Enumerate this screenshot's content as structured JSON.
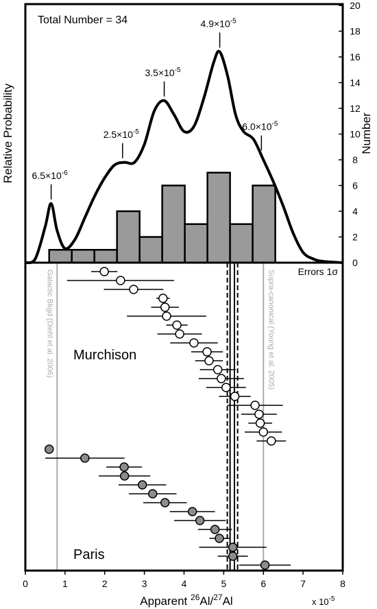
{
  "chart_data": [
    {
      "type": "histogram",
      "title": "Total Number = 34",
      "ylabel_left": "Relative Probability",
      "ylabel_right": "Number",
      "xlim": [
        0,
        8
      ],
      "ylim": [
        0,
        20
      ],
      "yticks": [
        0,
        2,
        4,
        6,
        8,
        10,
        12,
        14,
        16,
        18,
        20
      ],
      "bins": [
        0.6,
        1.17,
        1.74,
        2.31,
        2.88,
        3.45,
        4.02,
        4.59,
        5.16,
        5.73,
        6.3
      ],
      "counts": [
        1,
        1,
        1,
        4,
        2,
        6,
        3,
        7,
        3,
        6
      ],
      "bar_color": "#9a9a9a",
      "curve": {
        "x": [
          0,
          0.25,
          0.5,
          0.65,
          0.8,
          1.0,
          1.25,
          1.5,
          1.75,
          2.0,
          2.25,
          2.5,
          2.75,
          3.0,
          3.25,
          3.5,
          3.75,
          4.0,
          4.25,
          4.5,
          4.75,
          4.9,
          5.1,
          5.3,
          5.5,
          5.75,
          6.0,
          6.25,
          6.5,
          6.75,
          7.0,
          7.25,
          7.5,
          8
        ],
        "y": [
          0,
          0.3,
          2.8,
          4.6,
          2.5,
          1.1,
          1.8,
          3.5,
          5.2,
          6.6,
          7.6,
          7.8,
          7.8,
          9.2,
          11.8,
          12.6,
          11.5,
          10.2,
          10.6,
          12.8,
          15.6,
          16.4,
          14.5,
          11.5,
          10.2,
          9.6,
          8.0,
          6.3,
          4.4,
          2.3,
          0.8,
          0.3,
          0.1,
          0
        ]
      },
      "annotations": [
        {
          "x": 0.65,
          "y": 4.6,
          "base": "6.5×10",
          "exp": "-6"
        },
        {
          "x": 2.45,
          "y": 7.8,
          "base": "2.5×10",
          "exp": "-5"
        },
        {
          "x": 3.5,
          "y": 12.6,
          "base": "3.5×10",
          "exp": "-5"
        },
        {
          "x": 4.9,
          "y": 16.4,
          "base": "4.9×10",
          "exp": "-5"
        },
        {
          "x": 5.95,
          "y": 8.4,
          "base": "6.0×10",
          "exp": "-5"
        }
      ]
    },
    {
      "type": "errorbar",
      "error_note": "Errors 1σ",
      "xlim": [
        0,
        8
      ],
      "xticks": [
        0,
        1,
        2,
        3,
        4,
        5,
        6,
        7,
        8
      ],
      "xlabel": [
        {
          "text": "Apparent "
        },
        {
          "text": "26",
          "sup": true
        },
        {
          "text": "Al/"
        },
        {
          "text": "27",
          "sup": true
        },
        {
          "text": "Al"
        }
      ],
      "x_multiplier": {
        "base": "x 10",
        "exp": "-5"
      },
      "series": [
        {
          "name": "Murchison",
          "color": "#ffffff",
          "values": [
            1.99,
            2.4,
            2.73,
            3.47,
            3.52,
            3.56,
            3.82,
            3.89,
            4.25,
            4.58,
            4.63,
            4.85,
            4.94,
            5.06,
            5.28,
            5.79,
            5.89,
            5.92,
            6.0,
            6.2
          ],
          "errors": [
            0.33,
            1.35,
            0.75,
            0.17,
            0.35,
            1.0,
            0.27,
            0.56,
            0.6,
            0.4,
            0.35,
            0.45,
            0.57,
            0.5,
            0.4,
            0.7,
            0.45,
            0.3,
            0.47,
            0.37
          ]
        },
        {
          "name": "Paris",
          "color": "#8c8c8c",
          "values": [
            0.6,
            1.5,
            2.49,
            2.5,
            2.95,
            3.21,
            3.52,
            4.21,
            4.4,
            4.78,
            4.89,
            5.23,
            5.23,
            6.04
          ],
          "errors": [
            0.07,
            1.0,
            0.45,
            0.65,
            0.6,
            0.6,
            0.55,
            0.57,
            0.65,
            0.43,
            0.25,
            0.85,
            0.38,
            0.65
          ]
        }
      ],
      "ref_lines": [
        {
          "value": 0.8,
          "style": "gray",
          "label": "Galactic Bkgd (Diehl et al. 2006)"
        },
        {
          "value": 6.0,
          "style": "gray",
          "label": "Supra-canonical (Young et al. 2005)"
        },
        {
          "value": 5.09,
          "style": "dashed"
        },
        {
          "value": 5.16,
          "style": "solid"
        },
        {
          "value": 5.27,
          "style": "solid"
        },
        {
          "value": 5.35,
          "style": "dashed"
        }
      ]
    }
  ]
}
